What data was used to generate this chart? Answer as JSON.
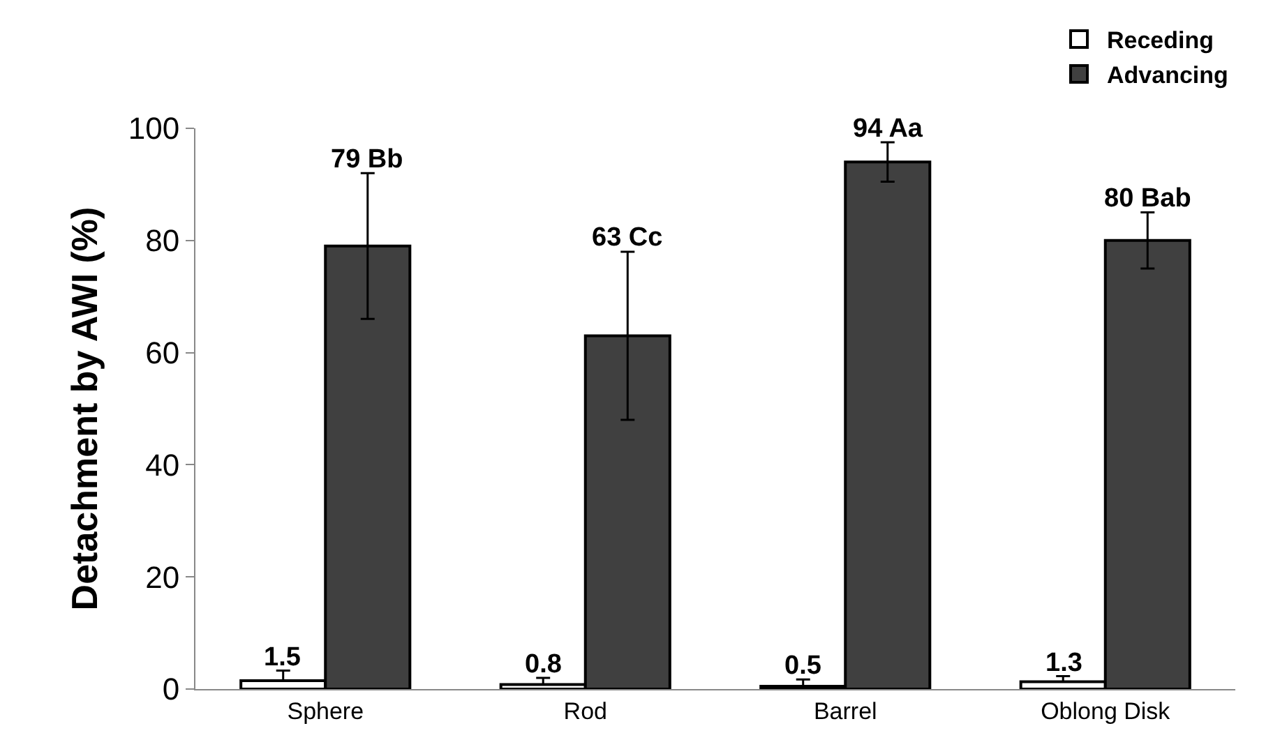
{
  "chart_data": {
    "type": "bar",
    "ylabel": "Detachment by AWI (%)",
    "categories": [
      "Sphere",
      "Rod",
      "Barrel",
      "Oblong Disk"
    ],
    "series": [
      {
        "name": "Receding",
        "color": "#ffffff",
        "values": [
          1.5,
          0.8,
          0.5,
          1.3
        ],
        "errors": [
          [
            1.5,
            3.3
          ],
          [
            0.8,
            2
          ],
          [
            0.5,
            1.7
          ],
          [
            1.3,
            2.3
          ]
        ],
        "value_labels": [
          "1.5",
          "0.8",
          "0.5",
          "1.3"
        ]
      },
      {
        "name": "Advancing",
        "color": "#404040",
        "values": [
          79,
          63,
          94,
          80
        ],
        "errors": [
          13,
          15,
          3.5,
          5
        ],
        "value_labels": [
          "79 Bb",
          "63 Cc",
          "94 Aa",
          "80 Bab"
        ]
      }
    ],
    "ylim": [
      0,
      100
    ],
    "yticks": [
      0,
      20,
      40,
      60,
      80,
      100
    ],
    "grid": false,
    "legend": "top right"
  }
}
